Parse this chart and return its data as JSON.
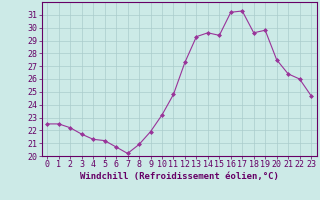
{
  "x": [
    0,
    1,
    2,
    3,
    4,
    5,
    6,
    7,
    8,
    9,
    10,
    11,
    12,
    13,
    14,
    15,
    16,
    17,
    18,
    19,
    20,
    21,
    22,
    23
  ],
  "y": [
    22.5,
    22.5,
    22.2,
    21.7,
    21.3,
    21.2,
    20.7,
    20.2,
    20.9,
    21.9,
    23.2,
    24.8,
    27.3,
    29.3,
    29.6,
    29.4,
    31.2,
    31.3,
    29.6,
    29.8,
    27.5,
    26.4,
    26.0,
    24.7
  ],
  "line_color": "#993399",
  "marker": "D",
  "marker_size": 2,
  "bg_color": "#cceae7",
  "grid_color": "#aacccc",
  "xlabel": "Windchill (Refroidissement éolien,°C)",
  "ylim": [
    20,
    32
  ],
  "xlim": [
    -0.5,
    23.5
  ],
  "yticks": [
    20,
    21,
    22,
    23,
    24,
    25,
    26,
    27,
    28,
    29,
    30,
    31
  ],
  "xticks": [
    0,
    1,
    2,
    3,
    4,
    5,
    6,
    7,
    8,
    9,
    10,
    11,
    12,
    13,
    14,
    15,
    16,
    17,
    18,
    19,
    20,
    21,
    22,
    23
  ],
  "tick_color": "#660066",
  "label_fontsize": 6.5,
  "tick_fontsize": 6,
  "spine_color": "#660066",
  "linewidth": 0.8
}
